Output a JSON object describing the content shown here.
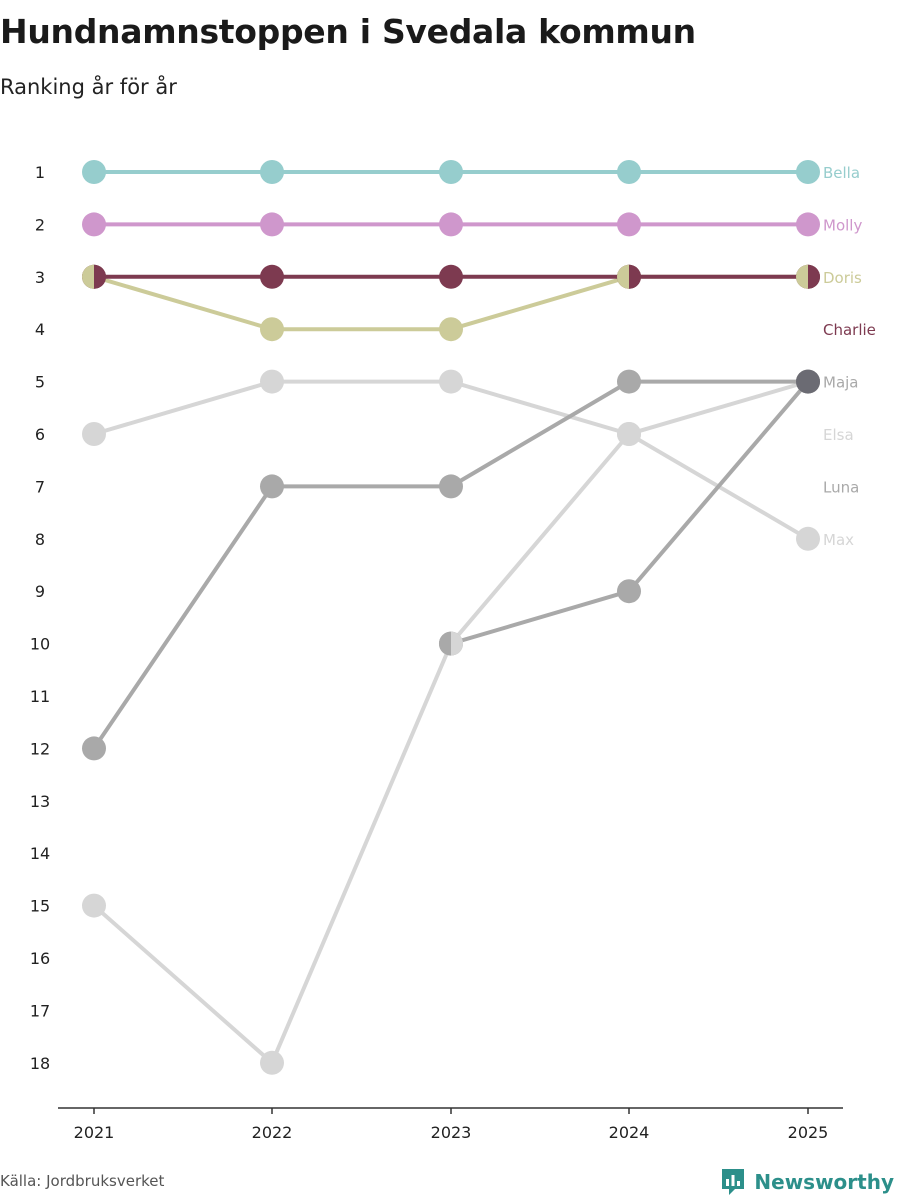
{
  "title": "Hundnamnstoppen i Svedala kommun",
  "subtitle": "Ranking år för år",
  "source": "Källa: Jordbruksverket",
  "brand": "Newsworthy",
  "colors": {
    "accent": "#2c8f8a",
    "axis": "#333333",
    "text": "#222222"
  },
  "chart_data": {
    "type": "line",
    "title": "Hundnamnstoppen i Svedala kommun",
    "subtitle": "Ranking år för år",
    "x": [
      "2021",
      "2022",
      "2023",
      "2024",
      "2025"
    ],
    "xlabel": "",
    "ylabel": "",
    "y_ticks": [
      "1",
      "2",
      "3",
      "4",
      "5",
      "6",
      "7",
      "8",
      "9",
      "10",
      "11",
      "12",
      "13",
      "14",
      "15",
      "16",
      "17",
      "18"
    ],
    "ylim": [
      1,
      18
    ],
    "y_inverted": true,
    "series": [
      {
        "name": "Elsa",
        "color": "#d6d6d6",
        "values": [
          15,
          18,
          10,
          6,
          5
        ]
      },
      {
        "name": "Max",
        "color": "#d6d6d6",
        "values": [
          6,
          5,
          5,
          6,
          8
        ]
      },
      {
        "name": "Luna",
        "color": "#a9a9a9",
        "values": [
          null,
          null,
          10,
          9,
          5
        ]
      },
      {
        "name": "Maja",
        "color": "#a9a9a9",
        "values": [
          12,
          7,
          7,
          5,
          5
        ]
      },
      {
        "name": "Doris",
        "color": "#cccb99",
        "values": [
          3,
          4,
          4,
          3,
          3
        ]
      },
      {
        "name": "Charlie",
        "color": "#7d3a50",
        "values": [
          3,
          3,
          3,
          3,
          3
        ]
      },
      {
        "name": "Molly",
        "color": "#cf97cc",
        "values": [
          2,
          2,
          2,
          2,
          2
        ]
      },
      {
        "name": "Bella",
        "color": "#96cdcd",
        "values": [
          1,
          1,
          1,
          1,
          1
        ]
      }
    ],
    "labels": [
      {
        "name": "Bella",
        "rank": 1,
        "color": "#96cdcd"
      },
      {
        "name": "Molly",
        "rank": 2,
        "color": "#cf97cc"
      },
      {
        "name": "Doris",
        "rank": 3,
        "color": "#cccb99"
      },
      {
        "name": "Charlie",
        "rank": 4,
        "color": "#7d3a50"
      },
      {
        "name": "Maja",
        "rank": 5,
        "color": "#a9a9a9"
      },
      {
        "name": "Elsa",
        "rank": 6,
        "color": "#d6d6d6"
      },
      {
        "name": "Luna",
        "rank": 7,
        "color": "#a9a9a9"
      },
      {
        "name": "Max",
        "rank": 8,
        "color": "#d6d6d6"
      }
    ],
    "split_markers": [
      {
        "year": "2021",
        "rank": 3,
        "left": "#cccb99",
        "right": "#7d3a50"
      },
      {
        "year": "2023",
        "rank": 10,
        "left": "#a9a9a9",
        "right": "#d6d6d6"
      },
      {
        "year": "2024",
        "rank": 3,
        "left": "#cccb99",
        "right": "#7d3a50"
      },
      {
        "year": "2025",
        "rank": 3,
        "left": "#cccb99",
        "right": "#7d3a50"
      },
      {
        "year": "2025",
        "rank": 5,
        "left": "#6b6b73",
        "right": "#6b6b73"
      }
    ]
  }
}
